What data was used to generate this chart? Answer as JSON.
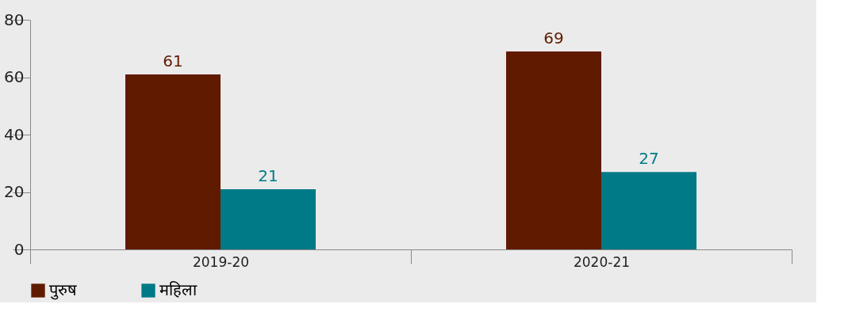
{
  "chart_data": {
    "type": "bar",
    "categories": [
      "2019-20",
      "2020-21"
    ],
    "series": [
      {
        "name": "पुरुष",
        "color": "#601a00",
        "values": [
          61,
          69
        ]
      },
      {
        "name": "महिला",
        "color": "#007a87",
        "values": [
          21,
          27
        ]
      }
    ],
    "ylim": [
      0,
      80
    ],
    "yticks": [
      0,
      20,
      40,
      60,
      80
    ],
    "grid": false,
    "legend": "bottom",
    "data_labels": true
  }
}
